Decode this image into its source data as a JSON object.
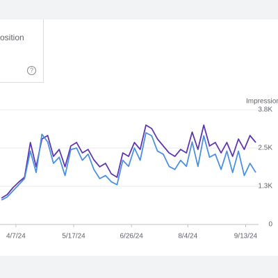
{
  "card": {
    "metric_label": "osition",
    "help_icon": "?"
  },
  "chart_data": {
    "type": "line",
    "y_label": "Impressions",
    "x": [
      "2024-03-28",
      "2024-04-01",
      "2024-04-05",
      "2024-04-09",
      "2024-04-13",
      "2024-04-17",
      "2024-04-21",
      "2024-04-25",
      "2024-04-29",
      "2024-05-03",
      "2024-05-07",
      "2024-05-11",
      "2024-05-15",
      "2024-05-19",
      "2024-05-23",
      "2024-05-27",
      "2024-05-31",
      "2024-06-04",
      "2024-06-08",
      "2024-06-12",
      "2024-06-16",
      "2024-06-20",
      "2024-06-24",
      "2024-06-28",
      "2024-07-02",
      "2024-07-06",
      "2024-07-10",
      "2024-07-14",
      "2024-07-18",
      "2024-07-22",
      "2024-07-26",
      "2024-07-30",
      "2024-08-03",
      "2024-08-07",
      "2024-08-11",
      "2024-08-15",
      "2024-08-19",
      "2024-08-23",
      "2024-08-27",
      "2024-08-31",
      "2024-09-04",
      "2024-09-08",
      "2024-09-12",
      "2024-09-16",
      "2024-09-20"
    ],
    "series": [
      {
        "color": "#5e35b1",
        "values": [
          864,
          977,
          1205,
          1386,
          1545,
          2682,
          1886,
          2795,
          2909,
          2227,
          2455,
          1886,
          2568,
          2682,
          2341,
          2455,
          2114,
          1886,
          2000,
          1659,
          1545,
          2341,
          2227,
          2682,
          2455,
          3250,
          3136,
          2795,
          2568,
          2341,
          2227,
          2455,
          2341,
          3023,
          2455,
          3250,
          2568,
          2682,
          2341,
          2682,
          2227,
          2795,
          2455,
          2909,
          2682
        ]
      },
      {
        "color": "#4a90e2",
        "values": [
          800,
          900,
          1100,
          1300,
          1500,
          2400,
          1700,
          2950,
          2700,
          2000,
          2200,
          1600,
          2450,
          2500,
          2100,
          2300,
          1800,
          1500,
          1600,
          1400,
          1300,
          2100,
          1900,
          2500,
          2100,
          3000,
          2900,
          2400,
          2300,
          1900,
          1800,
          2100,
          1900,
          2700,
          1900,
          2900,
          2200,
          2300,
          1800,
          2400,
          1700,
          2400,
          1600,
          2000,
          1700
        ]
      }
    ],
    "xlim": [
      "2024-03-27",
      "2024-09-20"
    ],
    "xticks": [
      {
        "value": "2024-04-07",
        "label": "4/7/24"
      },
      {
        "value": "2024-05-17",
        "label": "5/17/24"
      },
      {
        "value": "2024-06-26",
        "label": "6/26/24"
      },
      {
        "value": "2024-08-04",
        "label": "8/4/24"
      },
      {
        "value": "2024-09-13",
        "label": "9/13/24"
      }
    ],
    "ylim": [
      0,
      3750
    ],
    "yticks": [
      0,
      {
        "value": 1250,
        "label": "1.3K"
      },
      {
        "value": 2500,
        "label": "2.5K"
      },
      {
        "value": 3750,
        "label": "3.8K"
      }
    ],
    "grid": true
  }
}
